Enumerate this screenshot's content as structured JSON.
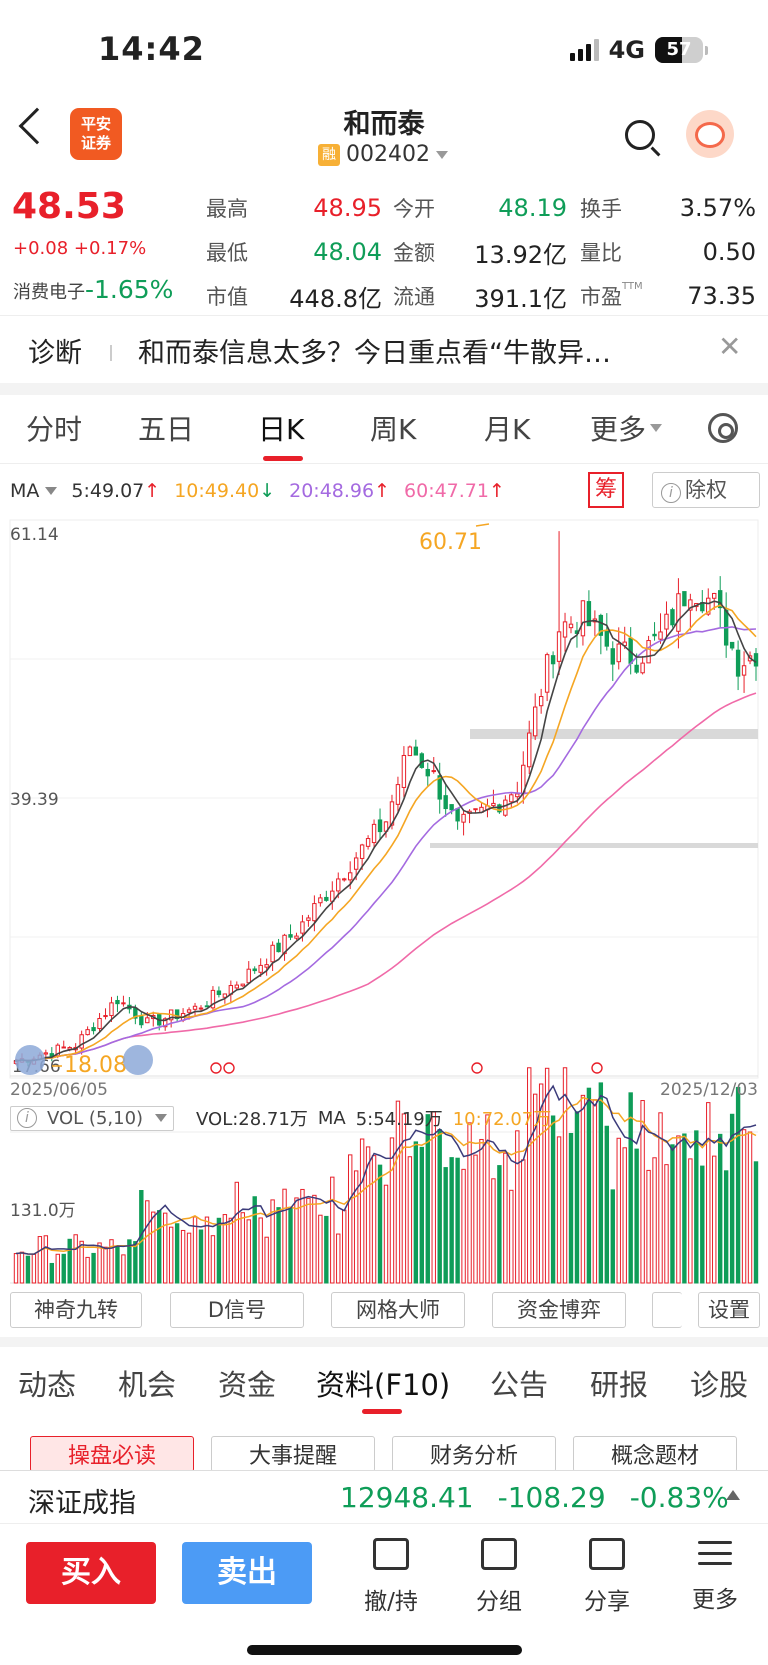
{
  "status": {
    "time": "14:42",
    "network": "4G",
    "battery": "57"
  },
  "header": {
    "logo_line1": "平安",
    "logo_line2": "证券",
    "stock_name": "和而泰",
    "badge": "融",
    "code": "002402"
  },
  "quote": {
    "price": "48.53",
    "change": "+0.08",
    "change_pct": "+0.17%",
    "sector_name": "消费电子",
    "sector_pct": "-1.65%",
    "col1": [
      {
        "label": "最高",
        "value": "48.95",
        "color": "red"
      },
      {
        "label": "最低",
        "value": "48.04",
        "color": "green"
      },
      {
        "label": "市值",
        "value": "448.8亿",
        "color": "black"
      }
    ],
    "col2": [
      {
        "label": "今开",
        "value": "48.19",
        "color": "green"
      },
      {
        "label": "金额",
        "value": "13.92亿",
        "color": "black"
      },
      {
        "label": "流通",
        "value": "391.1亿",
        "color": "black"
      }
    ],
    "col3": [
      {
        "label": "换手",
        "value": "3.57%",
        "color": "black"
      },
      {
        "label": "量比",
        "value": "0.50",
        "color": "black"
      },
      {
        "label": "市盈",
        "value": "73.35",
        "color": "black",
        "sup": "TTM"
      }
    ]
  },
  "diagnosis": {
    "label": "诊断",
    "text": "和而泰信息太多？今日重点看“牛散异…",
    "close": "✕"
  },
  "period_tabs": [
    "分时",
    "五日",
    "日K",
    "周K",
    "月K",
    "更多"
  ],
  "period_active": "日K",
  "ma_legend": {
    "label": "MA",
    "items": [
      {
        "text": "5:49.07",
        "arrow": "↑",
        "color": "#333333",
        "arrow_color": "#e8202a"
      },
      {
        "text": "10:49.40",
        "arrow": "↓",
        "color": "#f5a623",
        "arrow_color": "#0f9d58"
      },
      {
        "text": "20:48.96",
        "arrow": "↑",
        "color": "#a46ae0",
        "arrow_color": "#e8202a"
      },
      {
        "text": "60:47.71",
        "arrow": "↑",
        "color": "#f06aa8",
        "arrow_color": "#e8202a"
      }
    ],
    "chou": "筹",
    "chuquan": "除权"
  },
  "kchart": {
    "y_top": "61.14",
    "y_mid": "39.39",
    "y_low": "17.66",
    "high_label": "60.71",
    "low_label": "18.08",
    "date_start": "2025/06/05",
    "date_end": "2025/12/03"
  },
  "volume": {
    "selector": "VOL (5,10)",
    "vol": "VOL:28.71万",
    "ma_label": "MA",
    "ma5": "5:54.19万",
    "ma10": "10:72.07万",
    "y_label": "131.0万"
  },
  "indicator_buttons": [
    "神奇九转",
    "D信号",
    "网格大师",
    "资金博弈",
    "",
    "设置"
  ],
  "section_tabs": [
    "动态",
    "机会",
    "资金",
    "资料(F10)",
    "公告",
    "研报",
    "诊股"
  ],
  "section_active": "资料(F10)",
  "chips": [
    "操盘必读",
    "大事提醒",
    "财务分析",
    "概念题材"
  ],
  "index": {
    "name": "深证成指",
    "value": "12948.41",
    "change": "-108.29",
    "pct": "-0.83%"
  },
  "toolbar": {
    "buy": "买入",
    "sell": "卖出",
    "items": [
      "撤/持",
      "分组",
      "分享",
      "更多"
    ]
  }
}
